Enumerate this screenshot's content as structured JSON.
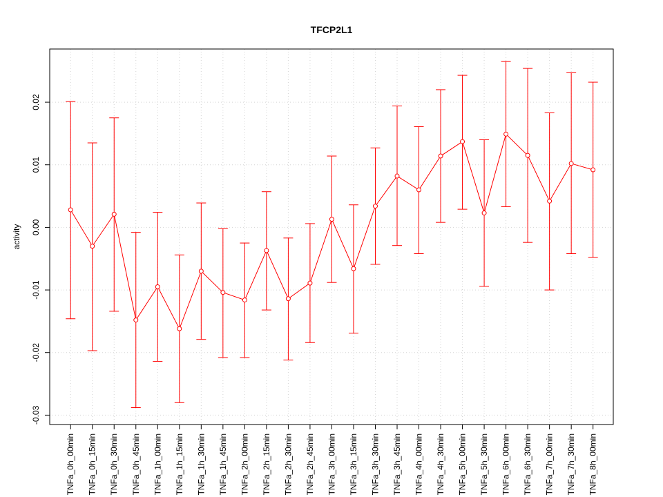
{
  "chart_data": {
    "type": "line",
    "title": "TFCP2L1",
    "xlabel": "",
    "ylabel": "activity",
    "ylim": [
      -0.0315,
      0.0285
    ],
    "yticks": [
      -0.03,
      -0.02,
      -0.01,
      0.0,
      0.01,
      0.02
    ],
    "ytick_labels": [
      "-0.03",
      "-0.02",
      "-0.01",
      "0.00",
      "0.01",
      "0.02"
    ],
    "grid": true,
    "categories": [
      "TNFa_0h_00min",
      "TNFa_0h_15min",
      "TNFa_0h_30min",
      "TNFa_0h_45min",
      "TNFa_1h_00min",
      "TNFa_1h_15min",
      "TNFa_1h_30min",
      "TNFa_1h_45min",
      "TNFa_2h_00min",
      "TNFa_2h_15min",
      "TNFa_2h_30min",
      "TNFa_2h_45min",
      "TNFa_3h_00min",
      "TNFa_3h_15min",
      "TNFa_3h_30min",
      "TNFa_3h_45min",
      "TNFa_4h_00min",
      "TNFa_4h_30min",
      "TNFa_5h_00min",
      "TNFa_5h_30min",
      "TNFa_6h_00min",
      "TNFa_6h_30min",
      "TNFa_7h_00min",
      "TNFa_7h_30min",
      "TNFa_8h_00min"
    ],
    "series": [
      {
        "color": "#ff0000",
        "values": [
          0.0028,
          -0.003,
          0.0021,
          -0.0148,
          -0.0095,
          -0.0162,
          -0.007,
          -0.0104,
          -0.0116,
          -0.0037,
          -0.0114,
          -0.0089,
          0.0013,
          -0.0066,
          0.0034,
          0.0082,
          0.006,
          0.0114,
          0.0137,
          0.0023,
          0.0149,
          0.0115,
          0.0042,
          0.0102,
          0.0092
        ],
        "upper": [
          0.0201,
          0.0135,
          0.0175,
          -0.0008,
          0.0024,
          -0.0044,
          0.0039,
          -0.0002,
          -0.0025,
          0.0057,
          -0.0017,
          0.0006,
          0.0114,
          0.0036,
          0.0127,
          0.0194,
          0.0161,
          0.022,
          0.0243,
          0.014,
          0.0265,
          0.0254,
          0.0183,
          0.0247,
          0.0232
        ],
        "lower": [
          -0.0146,
          -0.0197,
          -0.0134,
          -0.0288,
          -0.0214,
          -0.028,
          -0.0179,
          -0.0208,
          -0.0208,
          -0.0132,
          -0.0212,
          -0.0184,
          -0.0088,
          -0.0169,
          -0.0059,
          -0.0029,
          -0.0042,
          0.0008,
          0.0029,
          -0.0094,
          0.0033,
          -0.0024,
          -0.01,
          -0.0042,
          -0.0048
        ]
      }
    ]
  }
}
